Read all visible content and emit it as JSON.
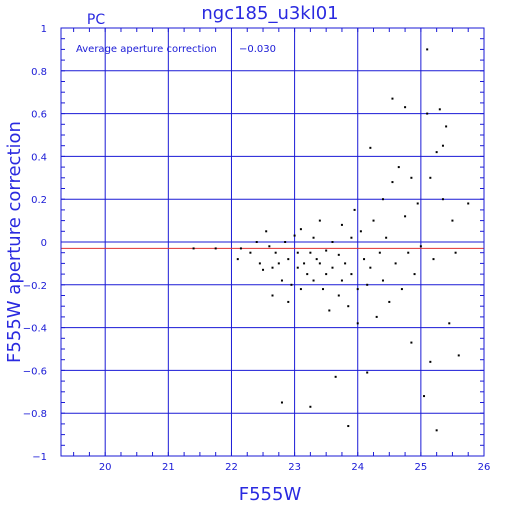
{
  "chart_data": {
    "type": "scatter",
    "title": "ngc185_u3kl01",
    "subtitle": "PC",
    "xlabel": "F555W",
    "ylabel": "F555W aperture correction",
    "xlim": [
      19.3,
      26.0
    ],
    "ylim": [
      -1.0,
      1.0
    ],
    "xticks": [
      20,
      21,
      22,
      23,
      24,
      25,
      26
    ],
    "yticks": [
      -1,
      -0.8,
      -0.6,
      -0.4,
      -0.2,
      0,
      0.2,
      0.4,
      0.6,
      0.8,
      1
    ],
    "ytick_labels": [
      "−1",
      "−0.8",
      "−0.6",
      "−0.4",
      "−0.2",
      "0",
      "0.2",
      "0.4",
      "0.6",
      "0.8",
      "1"
    ],
    "grid": true,
    "annotation_label": "Average aperture correction",
    "annotation_value": "−0.030",
    "reference_line": {
      "y": -0.03,
      "color": "#e03030"
    },
    "colors": {
      "axes": "#1a1ad6",
      "points": "#000000"
    },
    "points": [
      [
        21.4,
        -0.03
      ],
      [
        21.75,
        -0.03
      ],
      [
        22.1,
        -0.08
      ],
      [
        22.15,
        -0.03
      ],
      [
        22.3,
        -0.05
      ],
      [
        22.4,
        0.0
      ],
      [
        22.45,
        -0.1
      ],
      [
        22.5,
        -0.13
      ],
      [
        22.55,
        0.05
      ],
      [
        22.6,
        -0.02
      ],
      [
        22.65,
        -0.12
      ],
      [
        22.65,
        -0.25
      ],
      [
        22.7,
        -0.05
      ],
      [
        22.75,
        -0.1
      ],
      [
        22.8,
        -0.18
      ],
      [
        22.8,
        -0.75
      ],
      [
        22.85,
        0.0
      ],
      [
        22.9,
        -0.28
      ],
      [
        22.9,
        -0.08
      ],
      [
        22.95,
        -0.2
      ],
      [
        23.0,
        0.03
      ],
      [
        23.05,
        -0.05
      ],
      [
        23.05,
        -0.12
      ],
      [
        23.1,
        -0.22
      ],
      [
        23.1,
        0.06
      ],
      [
        23.15,
        -0.1
      ],
      [
        23.2,
        -0.15
      ],
      [
        23.25,
        -0.05
      ],
      [
        23.25,
        -0.77
      ],
      [
        23.3,
        0.02
      ],
      [
        23.3,
        -0.18
      ],
      [
        23.35,
        -0.08
      ],
      [
        23.4,
        -0.1
      ],
      [
        23.4,
        0.1
      ],
      [
        23.45,
        -0.22
      ],
      [
        23.5,
        -0.04
      ],
      [
        23.5,
        -0.15
      ],
      [
        23.55,
        -0.32
      ],
      [
        23.6,
        0.0
      ],
      [
        23.6,
        -0.12
      ],
      [
        23.65,
        -0.63
      ],
      [
        23.7,
        -0.06
      ],
      [
        23.7,
        -0.25
      ],
      [
        23.75,
        0.08
      ],
      [
        23.75,
        -0.18
      ],
      [
        23.8,
        -0.1
      ],
      [
        23.85,
        -0.3
      ],
      [
        23.85,
        -0.86
      ],
      [
        23.9,
        0.02
      ],
      [
        23.9,
        -0.15
      ],
      [
        23.95,
        0.15
      ],
      [
        24.0,
        -0.22
      ],
      [
        24.0,
        -0.38
      ],
      [
        24.05,
        0.05
      ],
      [
        24.1,
        -0.08
      ],
      [
        24.15,
        -0.2
      ],
      [
        24.15,
        -0.61
      ],
      [
        24.2,
        0.44
      ],
      [
        24.2,
        -0.12
      ],
      [
        24.25,
        0.1
      ],
      [
        24.3,
        -0.35
      ],
      [
        24.35,
        -0.05
      ],
      [
        24.4,
        0.2
      ],
      [
        24.4,
        -0.18
      ],
      [
        24.45,
        0.02
      ],
      [
        24.5,
        -0.28
      ],
      [
        24.55,
        0.28
      ],
      [
        24.55,
        0.67
      ],
      [
        24.6,
        -0.1
      ],
      [
        24.65,
        0.35
      ],
      [
        24.7,
        -0.22
      ],
      [
        24.75,
        0.63
      ],
      [
        24.75,
        0.12
      ],
      [
        24.8,
        -0.05
      ],
      [
        24.85,
        0.3
      ],
      [
        24.85,
        -0.47
      ],
      [
        24.9,
        -0.15
      ],
      [
        24.95,
        0.18
      ],
      [
        25.0,
        -0.02
      ],
      [
        25.05,
        -0.72
      ],
      [
        25.1,
        0.9
      ],
      [
        25.1,
        0.6
      ],
      [
        25.15,
        0.3
      ],
      [
        25.15,
        -0.56
      ],
      [
        25.2,
        -0.08
      ],
      [
        25.25,
        0.42
      ],
      [
        25.25,
        -0.88
      ],
      [
        25.3,
        0.62
      ],
      [
        25.35,
        0.45
      ],
      [
        25.35,
        0.2
      ],
      [
        25.4,
        0.54
      ],
      [
        25.45,
        -0.38
      ],
      [
        25.5,
        0.1
      ],
      [
        25.55,
        -0.05
      ],
      [
        25.6,
        -0.53
      ],
      [
        25.75,
        0.18
      ]
    ]
  }
}
